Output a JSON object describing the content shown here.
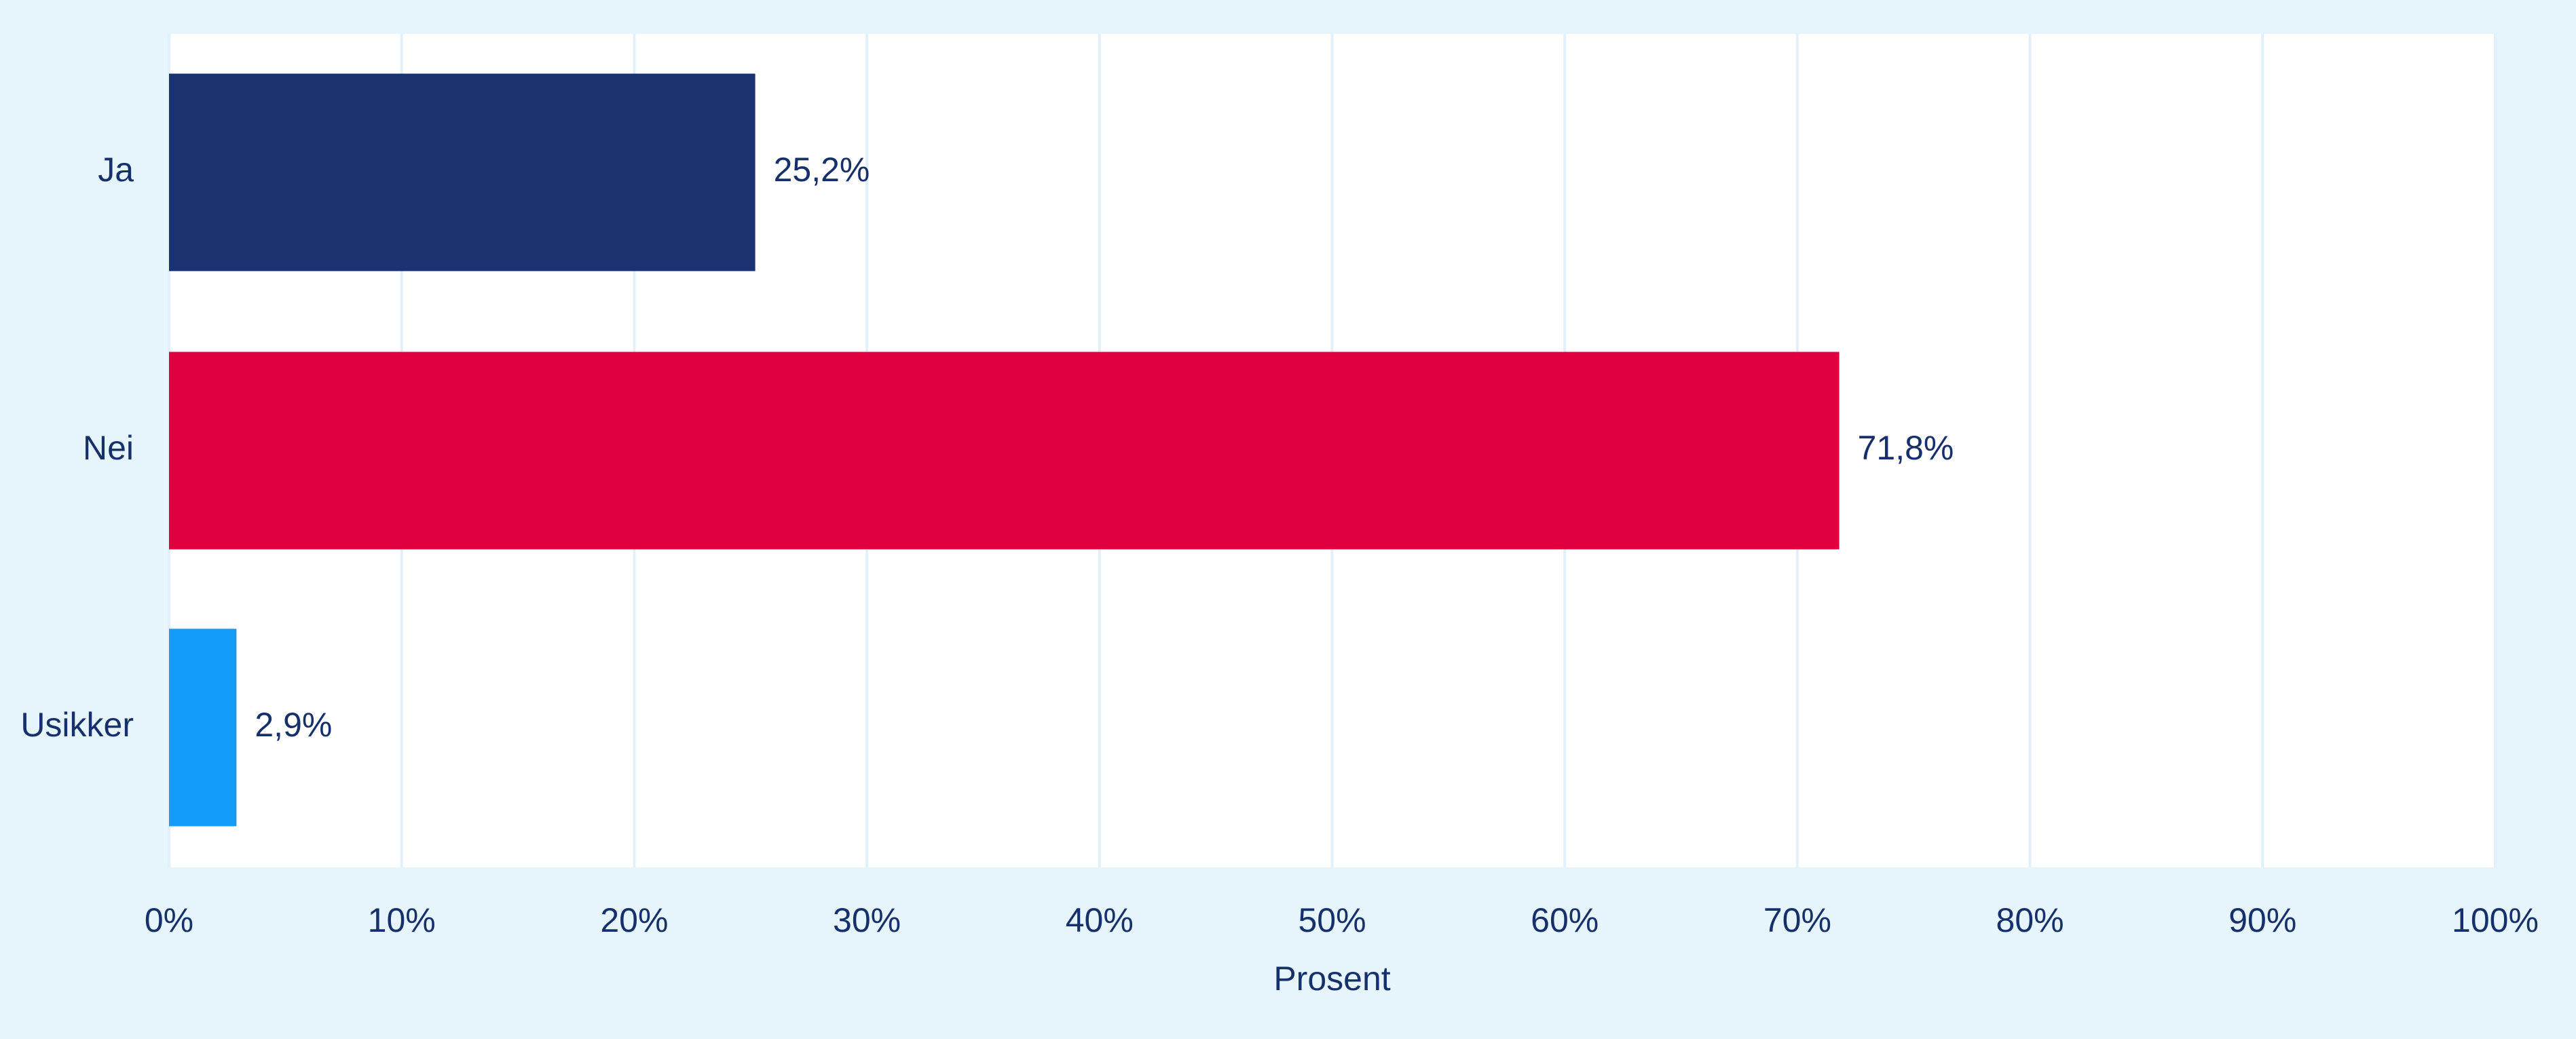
{
  "colors": {
    "background": "#e6f5fc",
    "plot_background": "#ffffff",
    "gridline": "#e1f0f9",
    "text": "#16306b"
  },
  "chart_data": {
    "type": "bar",
    "orientation": "horizontal",
    "categories": [
      "Ja",
      "Nei",
      "Usikker"
    ],
    "values": [
      25.2,
      71.8,
      2.9
    ],
    "value_labels": [
      "25,2%",
      "71,8%",
      "2,9%"
    ],
    "bar_colors": [
      "#1a3370",
      "#e0003f",
      "#149bfa"
    ],
    "xlabel": "Prosent",
    "ylabel": "",
    "xlim": [
      0,
      100
    ],
    "xticks": [
      0,
      10,
      20,
      30,
      40,
      50,
      60,
      70,
      80,
      90,
      100
    ],
    "xtick_labels": [
      "0%",
      "10%",
      "20%",
      "30%",
      "40%",
      "50%",
      "60%",
      "70%",
      "80%",
      "90%",
      "100%"
    ],
    "grid": "vertical",
    "legend": "none"
  }
}
